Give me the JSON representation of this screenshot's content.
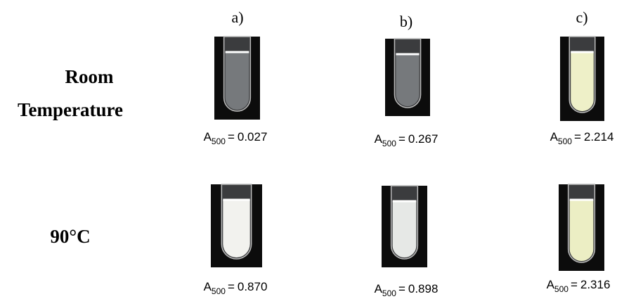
{
  "columns": [
    {
      "label": "a)"
    },
    {
      "label": "b)"
    },
    {
      "label": "c)"
    }
  ],
  "rows": [
    {
      "label": [
        "Room",
        "Temperature"
      ],
      "cells": [
        {
          "symbol": "A",
          "subscript": "500",
          "relation": "=",
          "value": "0.027"
        },
        {
          "symbol": "A",
          "subscript": "500",
          "relation": "=",
          "value": "0.267"
        },
        {
          "symbol": "A",
          "subscript": "500",
          "relation": "=",
          "value": "2.214"
        }
      ]
    },
    {
      "label": [
        "90°C"
      ],
      "cells": [
        {
          "symbol": "A",
          "subscript": "500",
          "relation": "=",
          "value": "0.870"
        },
        {
          "symbol": "A",
          "subscript": "500",
          "relation": "=",
          "value": "0.898"
        },
        {
          "symbol": "A",
          "subscript": "500",
          "relation": "=",
          "value": "2.316"
        }
      ]
    }
  ]
}
